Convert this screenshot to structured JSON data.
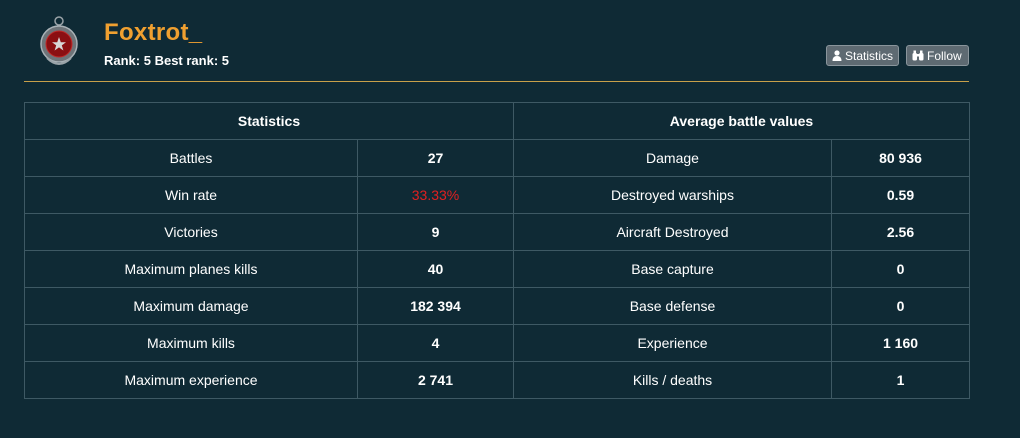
{
  "player": {
    "name": "Foxtrot_",
    "rank_line": "Rank: 5 Best rank: 5"
  },
  "buttons": {
    "statistics": "Statistics",
    "follow": "Follow"
  },
  "colors": {
    "name": "#f0a030",
    "winrate": "#e02020",
    "divider": "#c8a04a"
  },
  "table": {
    "left_header": "Statistics",
    "right_header": "Average battle values",
    "rows": [
      {
        "label": "Battles",
        "value": "27",
        "avg_label": "Damage",
        "avg_value": "80 936"
      },
      {
        "label": "Win rate",
        "value": "33.33%",
        "avg_label": "Destroyed warships",
        "avg_value": "0.59"
      },
      {
        "label": "Victories",
        "value": "9",
        "avg_label": "Aircraft Destroyed",
        "avg_value": "2.56"
      },
      {
        "label": "Maximum planes kills",
        "value": "40",
        "avg_label": "Base capture",
        "avg_value": "0"
      },
      {
        "label": "Maximum damage",
        "value": "182 394",
        "avg_label": "Base defense",
        "avg_value": "0"
      },
      {
        "label": "Maximum kills",
        "value": "4",
        "avg_label": "Experience",
        "avg_value": "1 160"
      },
      {
        "label": "Maximum experience",
        "value": "2 741",
        "avg_label": "Kills / deaths",
        "avg_value": "1"
      }
    ]
  }
}
